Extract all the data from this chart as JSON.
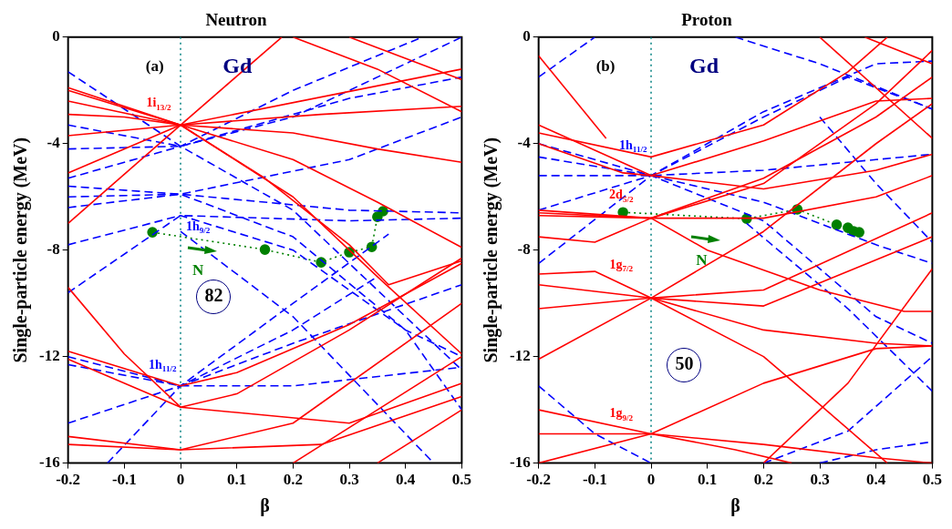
{
  "chart_data": [
    {
      "type": "line",
      "title": "Neutron",
      "xlabel": "β",
      "ylabel": "Single-particle energy (MeV)",
      "xlim": [
        -0.2,
        0.5
      ],
      "xticks": [
        -0.2,
        -0.1,
        0.0,
        0.1,
        0.2,
        0.3,
        0.4,
        0.5
      ],
      "ylim": [
        -16,
        0
      ],
      "yticks": [
        -16,
        -12,
        -8,
        -4,
        0
      ],
      "grid": false,
      "legend": false,
      "ref_lines": [
        {
          "axis": "x",
          "value": 0,
          "color": "#008080",
          "line_style": "dotted"
        }
      ],
      "annotations": [
        "(a)",
        "Gd",
        "82",
        "1i$_{13/2}$",
        "1h$_{9/2}$",
        "1h$_{11/2}$",
        "N"
      ],
      "series": [
        {
          "color": "#ff0000",
          "line_style": "solid",
          "x": [
            -0.2,
            0,
            0.18
          ],
          "values": [
            -7.0,
            -3.3,
            0
          ]
        },
        {
          "color": "#ff0000",
          "line_style": "solid",
          "x": [
            -0.2,
            0,
            0.5
          ],
          "values": [
            -5.1,
            -3.3,
            -1.2
          ]
        },
        {
          "color": "#ff0000",
          "line_style": "solid",
          "x": [
            -0.2,
            0,
            0.25,
            0.5
          ],
          "values": [
            -3.7,
            -3.3,
            -2.9,
            -2.6
          ]
        },
        {
          "color": "#ff0000",
          "line_style": "solid",
          "x": [
            -0.2,
            -0.1,
            0,
            0.2,
            0.35,
            0.5
          ],
          "values": [
            -2.9,
            -3.0,
            -3.3,
            -3.6,
            -4.2,
            -4.7
          ]
        },
        {
          "color": "#ff0000",
          "line_style": "solid",
          "x": [
            -0.2,
            0,
            0.2,
            0.35,
            0.5
          ],
          "values": [
            -2.4,
            -3.3,
            -4.6,
            -6.2,
            -7.9
          ]
        },
        {
          "color": "#ff0000",
          "line_style": "solid",
          "x": [
            -0.2,
            0,
            0.15,
            0.3,
            0.37,
            0.5
          ],
          "values": [
            -2.0,
            -3.3,
            -5.3,
            -7.8,
            -9.3,
            -8.4
          ]
        },
        {
          "color": "#ff0000",
          "line_style": "solid",
          "x": [
            -0.2,
            0,
            0.2,
            0.35,
            0.5
          ],
          "values": [
            -1.9,
            -3.3,
            -6.0,
            -9.0,
            -11.9
          ]
        },
        {
          "color": "#ff0000",
          "line_style": "solid",
          "x": [
            0.2,
            0.35,
            0.5
          ],
          "values": [
            0,
            -1.2,
            -2.8
          ]
        },
        {
          "color": "#ff0000",
          "line_style": "solid",
          "x": [
            0.3,
            0.5
          ],
          "values": [
            0,
            -1.6
          ]
        },
        {
          "color": "#ff0000",
          "line_style": "solid",
          "x": [
            -0.2,
            -0.1,
            0,
            0.1,
            0.3,
            0.5
          ],
          "values": [
            -9.4,
            -11.9,
            -13.9,
            -13.4,
            -11.0,
            -8.3
          ]
        },
        {
          "color": "#ff0000",
          "line_style": "solid",
          "x": [
            -0.2,
            0,
            0.1,
            0.3,
            0.5
          ],
          "values": [
            -11.8,
            -13.1,
            -12.6,
            -10.8,
            -8.5
          ]
        },
        {
          "color": "#ff0000",
          "line_style": "solid",
          "x": [
            -0.2,
            0,
            0.3,
            0.5
          ],
          "values": [
            -12.1,
            -13.9,
            -14.5,
            -13.0
          ]
        },
        {
          "color": "#ff0000",
          "line_style": "solid",
          "x": [
            -0.2,
            0,
            0.25,
            0.5
          ],
          "values": [
            -15.0,
            -15.5,
            -15.3,
            -13.5
          ]
        },
        {
          "color": "#ff0000",
          "line_style": "solid",
          "x": [
            -0.2,
            0,
            0.2,
            0.5
          ],
          "values": [
            -15.3,
            -15.5,
            -14.5,
            -10.0
          ]
        },
        {
          "color": "#ff0000",
          "line_style": "solid",
          "x": [
            0.2,
            0.5
          ],
          "values": [
            -16,
            -12.0
          ]
        },
        {
          "color": "#ff0000",
          "line_style": "solid",
          "x": [
            0.35,
            0.5
          ],
          "values": [
            -16,
            -14.0
          ]
        },
        {
          "color": "#0000ff",
          "line_style": "dashed",
          "x": [
            -0.2,
            0,
            0.2,
            0.4,
            0.5
          ],
          "values": [
            -1.3,
            -4.1,
            -6.5,
            -10.5,
            -12.5
          ]
        },
        {
          "color": "#0000ff",
          "line_style": "dashed",
          "x": [
            -0.2,
            0,
            0.2,
            0.4,
            0.5
          ],
          "values": [
            -3.3,
            -4.1,
            -3.0,
            -1.0,
            0
          ]
        },
        {
          "color": "#0000ff",
          "line_style": "dashed",
          "x": [
            -0.2,
            0,
            0.3,
            0.5
          ],
          "values": [
            -4.2,
            -4.1,
            -2.3,
            -1.5
          ]
        },
        {
          "color": "#0000ff",
          "line_style": "dashed",
          "x": [
            -0.2,
            0,
            0.2,
            0.43
          ],
          "values": [
            -5.3,
            -4.1,
            -2.0,
            0
          ]
        },
        {
          "color": "#0000ff",
          "line_style": "dashed",
          "x": [
            -0.2,
            0,
            0.3,
            0.5
          ],
          "values": [
            -5.6,
            -5.9,
            -4.6,
            -3.0
          ]
        },
        {
          "color": "#0000ff",
          "line_style": "dashed",
          "x": [
            -0.2,
            0,
            0.3,
            0.5
          ],
          "values": [
            -6.0,
            -5.9,
            -6.5,
            -6.6
          ]
        },
        {
          "color": "#0000ff",
          "line_style": "dashed",
          "x": [
            -0.2,
            0,
            0.2,
            0.4,
            0.5
          ],
          "values": [
            -6.4,
            -5.9,
            -7.5,
            -11.0,
            -14.0
          ]
        },
        {
          "color": "#0000ff",
          "line_style": "dashed",
          "x": [
            -0.2,
            0,
            0.3,
            0.5
          ],
          "values": [
            -9.6,
            -6.7,
            -6.9,
            -6.8
          ]
        },
        {
          "color": "#0000ff",
          "line_style": "dashed",
          "x": [
            -0.2,
            0,
            0.2,
            0.4,
            0.5
          ],
          "values": [
            -7.8,
            -6.7,
            -8.0,
            -11.0,
            -12.0
          ]
        },
        {
          "color": "#0000ff",
          "line_style": "dashed",
          "x": [
            -0.2,
            0,
            0.2,
            0.5
          ],
          "values": [
            -12.0,
            -13.1,
            -11.5,
            -9.3
          ]
        },
        {
          "color": "#0000ff",
          "line_style": "dashed",
          "x": [
            -0.2,
            0,
            0.2,
            0.5
          ],
          "values": [
            -12.3,
            -13.1,
            -13.1,
            -12.4
          ]
        },
        {
          "color": "#0000ff",
          "line_style": "dashed",
          "x": [
            -0.2,
            0,
            0.2,
            0.35
          ],
          "values": [
            -14.5,
            -13.1,
            -11.0,
            -9.0
          ]
        },
        {
          "color": "#0000ff",
          "line_style": "dashed",
          "x": [
            -0.13,
            0,
            0.2,
            0.37
          ],
          "values": [
            -16,
            -13.1,
            -10.0,
            -7.4
          ]
        },
        {
          "color": "#0000ff",
          "line_style": "dashed",
          "x": [
            0,
            0.2,
            0.45
          ],
          "values": [
            -7.3,
            -10.5,
            -16
          ]
        },
        {
          "color": "#008000",
          "line_style": "dotted",
          "marker": "circle",
          "x": [
            -0.05,
            0.15,
            0.25,
            0.3,
            0.34,
            0.35,
            0.36
          ],
          "values": [
            -7.33,
            -7.98,
            -8.46,
            -8.08,
            -7.88,
            -6.75,
            -6.54
          ]
        }
      ]
    },
    {
      "type": "line",
      "title": "Proton",
      "xlabel": "β",
      "ylabel": "Single-particle energy (MeV)",
      "xlim": [
        -0.2,
        0.5
      ],
      "xticks": [
        -0.2,
        -0.1,
        0.0,
        0.1,
        0.2,
        0.3,
        0.4,
        0.5
      ],
      "ylim": [
        -16,
        0
      ],
      "yticks": [
        -16,
        -12,
        -8,
        -4,
        0
      ],
      "grid": false,
      "legend": false,
      "ref_lines": [
        {
          "axis": "x",
          "value": 0,
          "color": "#008080",
          "line_style": "dotted"
        }
      ],
      "annotations": [
        "(b)",
        "Gd",
        "50",
        "1h$_{11/2}$",
        "2d$_{5/2}$",
        "1g$_{7/2}$",
        "1g$_{9/2}$",
        "N"
      ],
      "series": [
        {
          "color": "#ff0000",
          "line_style": "solid",
          "x": [
            -0.2,
            -0.08
          ],
          "values": [
            -0.7,
            -3.8
          ]
        },
        {
          "color": "#ff0000",
          "line_style": "solid",
          "x": [
            -0.2,
            0,
            0.2,
            0.4,
            0.5
          ],
          "values": [
            -3.3,
            -5.2,
            -3.9,
            -2.4,
            -2.3
          ]
        },
        {
          "color": "#ff0000",
          "line_style": "solid",
          "x": [
            -0.2,
            0,
            0.2,
            0.35,
            0.42
          ],
          "values": [
            -3.6,
            -4.5,
            -3.3,
            -1.3,
            0
          ]
        },
        {
          "color": "#ff0000",
          "line_style": "solid",
          "x": [
            -0.2,
            -0.05,
            0,
            0.2,
            0.4,
            0.5
          ],
          "values": [
            -4.0,
            -5.1,
            -5.2,
            -5.7,
            -5.0,
            -4.4
          ]
        },
        {
          "color": "#ff0000",
          "line_style": "solid",
          "x": [
            -0.2,
            0,
            0.2,
            0.4,
            0.5
          ],
          "values": [
            -6.5,
            -6.8,
            -6.8,
            -6.0,
            -5.2
          ]
        },
        {
          "color": "#ff0000",
          "line_style": "solid",
          "x": [
            -0.2,
            0,
            0.2,
            0.4,
            0.5
          ],
          "values": [
            -6.7,
            -6.8,
            -5.3,
            -3.0,
            -1.5
          ]
        },
        {
          "color": "#ff0000",
          "line_style": "solid",
          "x": [
            -0.2,
            -0.1,
            0,
            0.2,
            0.4,
            0.5
          ],
          "values": [
            -7.5,
            -7.7,
            -6.8,
            -5.5,
            -2.5,
            -0.5
          ]
        },
        {
          "color": "#ff0000",
          "line_style": "solid",
          "x": [
            -0.2,
            0,
            0.1,
            0.3,
            0.45,
            0.5
          ],
          "values": [
            -6.6,
            -6.8,
            -8.0,
            -9.5,
            -10.3,
            -10.3
          ]
        },
        {
          "color": "#ff0000",
          "line_style": "solid",
          "x": [
            -0.2,
            -0.1,
            0,
            0.2,
            0.4,
            0.5
          ],
          "values": [
            -8.9,
            -8.8,
            -9.8,
            -11.0,
            -11.5,
            -11.6
          ]
        },
        {
          "color": "#ff0000",
          "line_style": "solid",
          "x": [
            -0.2,
            0,
            0.2,
            0.5
          ],
          "values": [
            -9.3,
            -9.8,
            -10.1,
            -7.5
          ]
        },
        {
          "color": "#ff0000",
          "line_style": "solid",
          "x": [
            -0.2,
            0,
            0.2,
            0.5
          ],
          "values": [
            -10.2,
            -9.8,
            -9.5,
            -6.6
          ]
        },
        {
          "color": "#ff0000",
          "line_style": "solid",
          "x": [
            -0.2,
            0,
            0.2,
            0.4,
            0.5
          ],
          "values": [
            -12.1,
            -9.8,
            -7.3,
            -4.0,
            -2.5
          ]
        },
        {
          "color": "#ff0000",
          "line_style": "solid",
          "x": [
            -0.2,
            0,
            0.2,
            0.4,
            0.5
          ],
          "values": [
            -16,
            -14.9,
            -13.0,
            -11.7,
            -11.6
          ]
        },
        {
          "color": "#ff0000",
          "line_style": "solid",
          "x": [
            -0.2,
            0,
            0.2,
            0.4,
            0.5
          ],
          "values": [
            -14.0,
            -14.9,
            -15.3,
            -15.8,
            -16
          ]
        },
        {
          "color": "#ff0000",
          "line_style": "solid",
          "x": [
            -0.2,
            0,
            0.15,
            0.25
          ],
          "values": [
            -14.9,
            -14.9,
            -15.5,
            -16
          ]
        },
        {
          "color": "#ff0000",
          "line_style": "solid",
          "x": [
            0,
            0.2,
            0.3,
            0.42
          ],
          "values": [
            -9.8,
            -12.0,
            -13.8,
            -16
          ]
        },
        {
          "color": "#ff0000",
          "line_style": "solid",
          "x": [
            0.2,
            0.35,
            0.5
          ],
          "values": [
            -16,
            -13.0,
            -8.7
          ]
        },
        {
          "color": "#ff0000",
          "line_style": "solid",
          "x": [
            0.3,
            0.5
          ],
          "values": [
            0,
            -3.8
          ]
        },
        {
          "color": "#ff0000",
          "line_style": "solid",
          "x": [
            0.38,
            0.5
          ],
          "values": [
            0,
            -1.0
          ]
        },
        {
          "color": "#0000ff",
          "line_style": "dashed",
          "x": [
            -0.2,
            -0.1
          ],
          "values": [
            -1.5,
            0
          ]
        },
        {
          "color": "#0000ff",
          "line_style": "dashed",
          "x": [
            -0.2,
            0,
            0.2,
            0.4,
            0.5
          ],
          "values": [
            -4.5,
            -5.2,
            -6.2,
            -7.8,
            -8.5
          ]
        },
        {
          "color": "#0000ff",
          "line_style": "dashed",
          "x": [
            -0.2,
            0,
            0.2,
            0.4,
            0.5
          ],
          "values": [
            -5.2,
            -5.2,
            -5.0,
            -4.6,
            -4.4
          ]
        },
        {
          "color": "#0000ff",
          "line_style": "dashed",
          "x": [
            -0.2,
            0,
            0.2,
            0.4,
            0.5
          ],
          "values": [
            -8.5,
            -5.2,
            -2.8,
            -1.0,
            -0.9
          ]
        },
        {
          "color": "#0000ff",
          "line_style": "dashed",
          "x": [
            -0.2,
            0,
            0.2,
            0.35,
            0.5
          ],
          "values": [
            -6.5,
            -5.2,
            -3.0,
            -1.5,
            -2.7
          ]
        },
        {
          "color": "#0000ff",
          "line_style": "dashed",
          "x": [
            -0.2,
            0,
            0.2,
            0.4,
            0.5
          ],
          "values": [
            -4.0,
            -5.2,
            -6.9,
            -10.5,
            -11.5
          ]
        },
        {
          "color": "#0000ff",
          "line_style": "dashed",
          "x": [
            0.15,
            0.3,
            0.5
          ],
          "values": [
            0,
            -1.0,
            -2.7
          ]
        },
        {
          "color": "#0000ff",
          "line_style": "dashed",
          "x": [
            0.17,
            0.35,
            0.5
          ],
          "values": [
            -7.0,
            -10.2,
            -13.3
          ]
        },
        {
          "color": "#0000ff",
          "line_style": "dashed",
          "x": [
            -0.2,
            -0.1,
            0
          ],
          "values": [
            -13.1,
            -14.9,
            -16
          ]
        },
        {
          "color": "#0000ff",
          "line_style": "dashed",
          "x": [
            0.2,
            0.35,
            0.5
          ],
          "values": [
            -16,
            -14.8,
            -12.0
          ]
        },
        {
          "color": "#0000ff",
          "line_style": "dashed",
          "x": [
            0.3,
            0.4,
            0.5
          ],
          "values": [
            -16,
            -15.5,
            -15.2
          ]
        },
        {
          "color": "#0000ff",
          "line_style": "dashed",
          "x": [
            0.3,
            0.4,
            0.5
          ],
          "values": [
            -3.0,
            -5.5,
            -7.7
          ]
        },
        {
          "color": "#008000",
          "line_style": "dotted",
          "marker": "circle",
          "x": [
            -0.05,
            0.17,
            0.26,
            0.33,
            0.35,
            0.36,
            0.37
          ],
          "values": [
            -6.58,
            -6.82,
            -6.47,
            -7.05,
            -7.16,
            -7.29,
            -7.33
          ]
        }
      ]
    }
  ]
}
